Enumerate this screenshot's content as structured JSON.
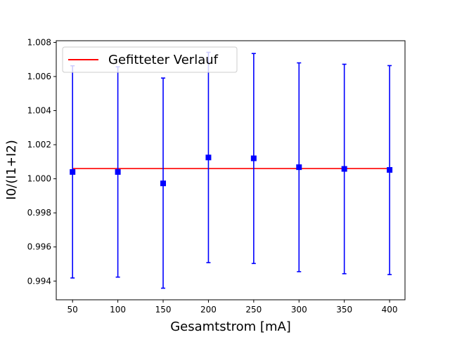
{
  "chart_data": {
    "type": "scatter",
    "title": "",
    "xlabel": "Gesamtstrom [mA]",
    "ylabel": "I0/(I1+I2)",
    "xlim": [
      32,
      417
    ],
    "ylim": [
      0.9929,
      1.0081
    ],
    "x_ticks": [
      50,
      100,
      150,
      200,
      250,
      300,
      350,
      400
    ],
    "x_tick_labels": [
      "50",
      "100",
      "150",
      "200",
      "250",
      "300",
      "350",
      "400"
    ],
    "y_ticks": [
      0.994,
      0.996,
      0.998,
      1.0,
      1.002,
      1.004,
      1.006,
      1.008
    ],
    "y_tick_labels": [
      "0.994",
      "0.996",
      "0.998",
      "1.000",
      "1.002",
      "1.004",
      "1.006",
      "1.008"
    ],
    "grid": false,
    "legend_position": "top-left",
    "series": [
      {
        "kind": "errorbar",
        "color": "#0000ff",
        "marker": "square",
        "x": [
          50,
          100,
          150,
          200,
          250,
          300,
          350,
          400
        ],
        "y": [
          1.0004,
          1.0004,
          0.99973,
          1.00125,
          1.0012,
          1.00068,
          1.00058,
          1.00052
        ],
        "y_lower": [
          0.99418,
          0.99423,
          0.99358,
          0.99508,
          0.99503,
          0.99455,
          0.99443,
          0.99438
        ],
        "y_upper": [
          1.00663,
          1.00657,
          1.00591,
          1.00742,
          1.00735,
          1.0068,
          1.00672,
          1.00664
        ]
      },
      {
        "name": "Gefitteter Verlauf",
        "kind": "line",
        "color": "#ff0000",
        "x": [
          50,
          400
        ],
        "y": [
          1.0006,
          1.0006
        ]
      }
    ]
  }
}
